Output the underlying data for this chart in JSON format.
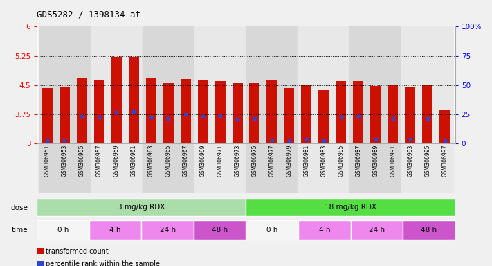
{
  "title": "GDS5282 / 1398134_at",
  "samples": [
    "GSM306951",
    "GSM306953",
    "GSM306955",
    "GSM306957",
    "GSM306959",
    "GSM306961",
    "GSM306963",
    "GSM306965",
    "GSM306967",
    "GSM306969",
    "GSM306971",
    "GSM306973",
    "GSM306975",
    "GSM306977",
    "GSM306979",
    "GSM306981",
    "GSM306983",
    "GSM306985",
    "GSM306987",
    "GSM306989",
    "GSM306991",
    "GSM306993",
    "GSM306995",
    "GSM306997"
  ],
  "bar_heights": [
    4.43,
    4.44,
    4.68,
    4.63,
    5.2,
    5.2,
    4.68,
    4.55,
    4.65,
    4.63,
    4.6,
    4.55,
    4.55,
    4.62,
    4.42,
    4.49,
    4.38,
    4.6,
    4.6,
    4.48,
    4.5,
    4.47,
    4.5,
    3.85
  ],
  "blue_marker_pos": [
    3.08,
    3.1,
    3.7,
    3.68,
    3.8,
    3.82,
    3.68,
    3.65,
    3.75,
    3.7,
    3.72,
    3.63,
    3.64,
    3.1,
    3.08,
    3.12,
    3.07,
    3.68,
    3.7,
    3.12,
    3.65,
    3.12,
    3.65,
    3.08
  ],
  "bar_color": "#cc1100",
  "blue_color": "#3344cc",
  "ylim_left": [
    3.0,
    6.0
  ],
  "ylim_right": [
    0,
    100
  ],
  "yticks_left": [
    3.0,
    3.75,
    4.5,
    5.25,
    6.0
  ],
  "yticks_right": [
    0,
    25,
    50,
    75,
    100
  ],
  "ytick_labels_left": [
    "3",
    "3.75",
    "4.5",
    "5.25",
    "6"
  ],
  "ytick_labels_right": [
    "0",
    "25",
    "50",
    "75",
    "100%"
  ],
  "hlines": [
    3.75,
    4.5,
    5.25
  ],
  "dose_groups": [
    {
      "label": "3 mg/kg RDX",
      "start": 0,
      "end": 12,
      "color": "#aaddaa"
    },
    {
      "label": "18 mg/kg RDX",
      "start": 12,
      "end": 24,
      "color": "#55dd44"
    }
  ],
  "time_groups": [
    {
      "label": "0 h",
      "start": 0,
      "end": 3,
      "color": "#f5f5f5"
    },
    {
      "label": "4 h",
      "start": 3,
      "end": 6,
      "color": "#ee88ee"
    },
    {
      "label": "24 h",
      "start": 6,
      "end": 9,
      "color": "#ee88ee"
    },
    {
      "label": "48 h",
      "start": 9,
      "end": 12,
      "color": "#cc55cc"
    },
    {
      "label": "0 h",
      "start": 12,
      "end": 15,
      "color": "#f5f5f5"
    },
    {
      "label": "4 h",
      "start": 15,
      "end": 18,
      "color": "#ee88ee"
    },
    {
      "label": "24 h",
      "start": 18,
      "end": 21,
      "color": "#ee88ee"
    },
    {
      "label": "48 h",
      "start": 21,
      "end": 24,
      "color": "#cc55cc"
    }
  ],
  "legend_items": [
    {
      "label": "transformed count",
      "color": "#cc1100"
    },
    {
      "label": "percentile rank within the sample",
      "color": "#3344cc"
    }
  ],
  "bg_color": "#f0f0f0",
  "plot_bg_color": "#ffffff",
  "stripe_colors": [
    "#d8d8d8",
    "#e8e8e8"
  ]
}
